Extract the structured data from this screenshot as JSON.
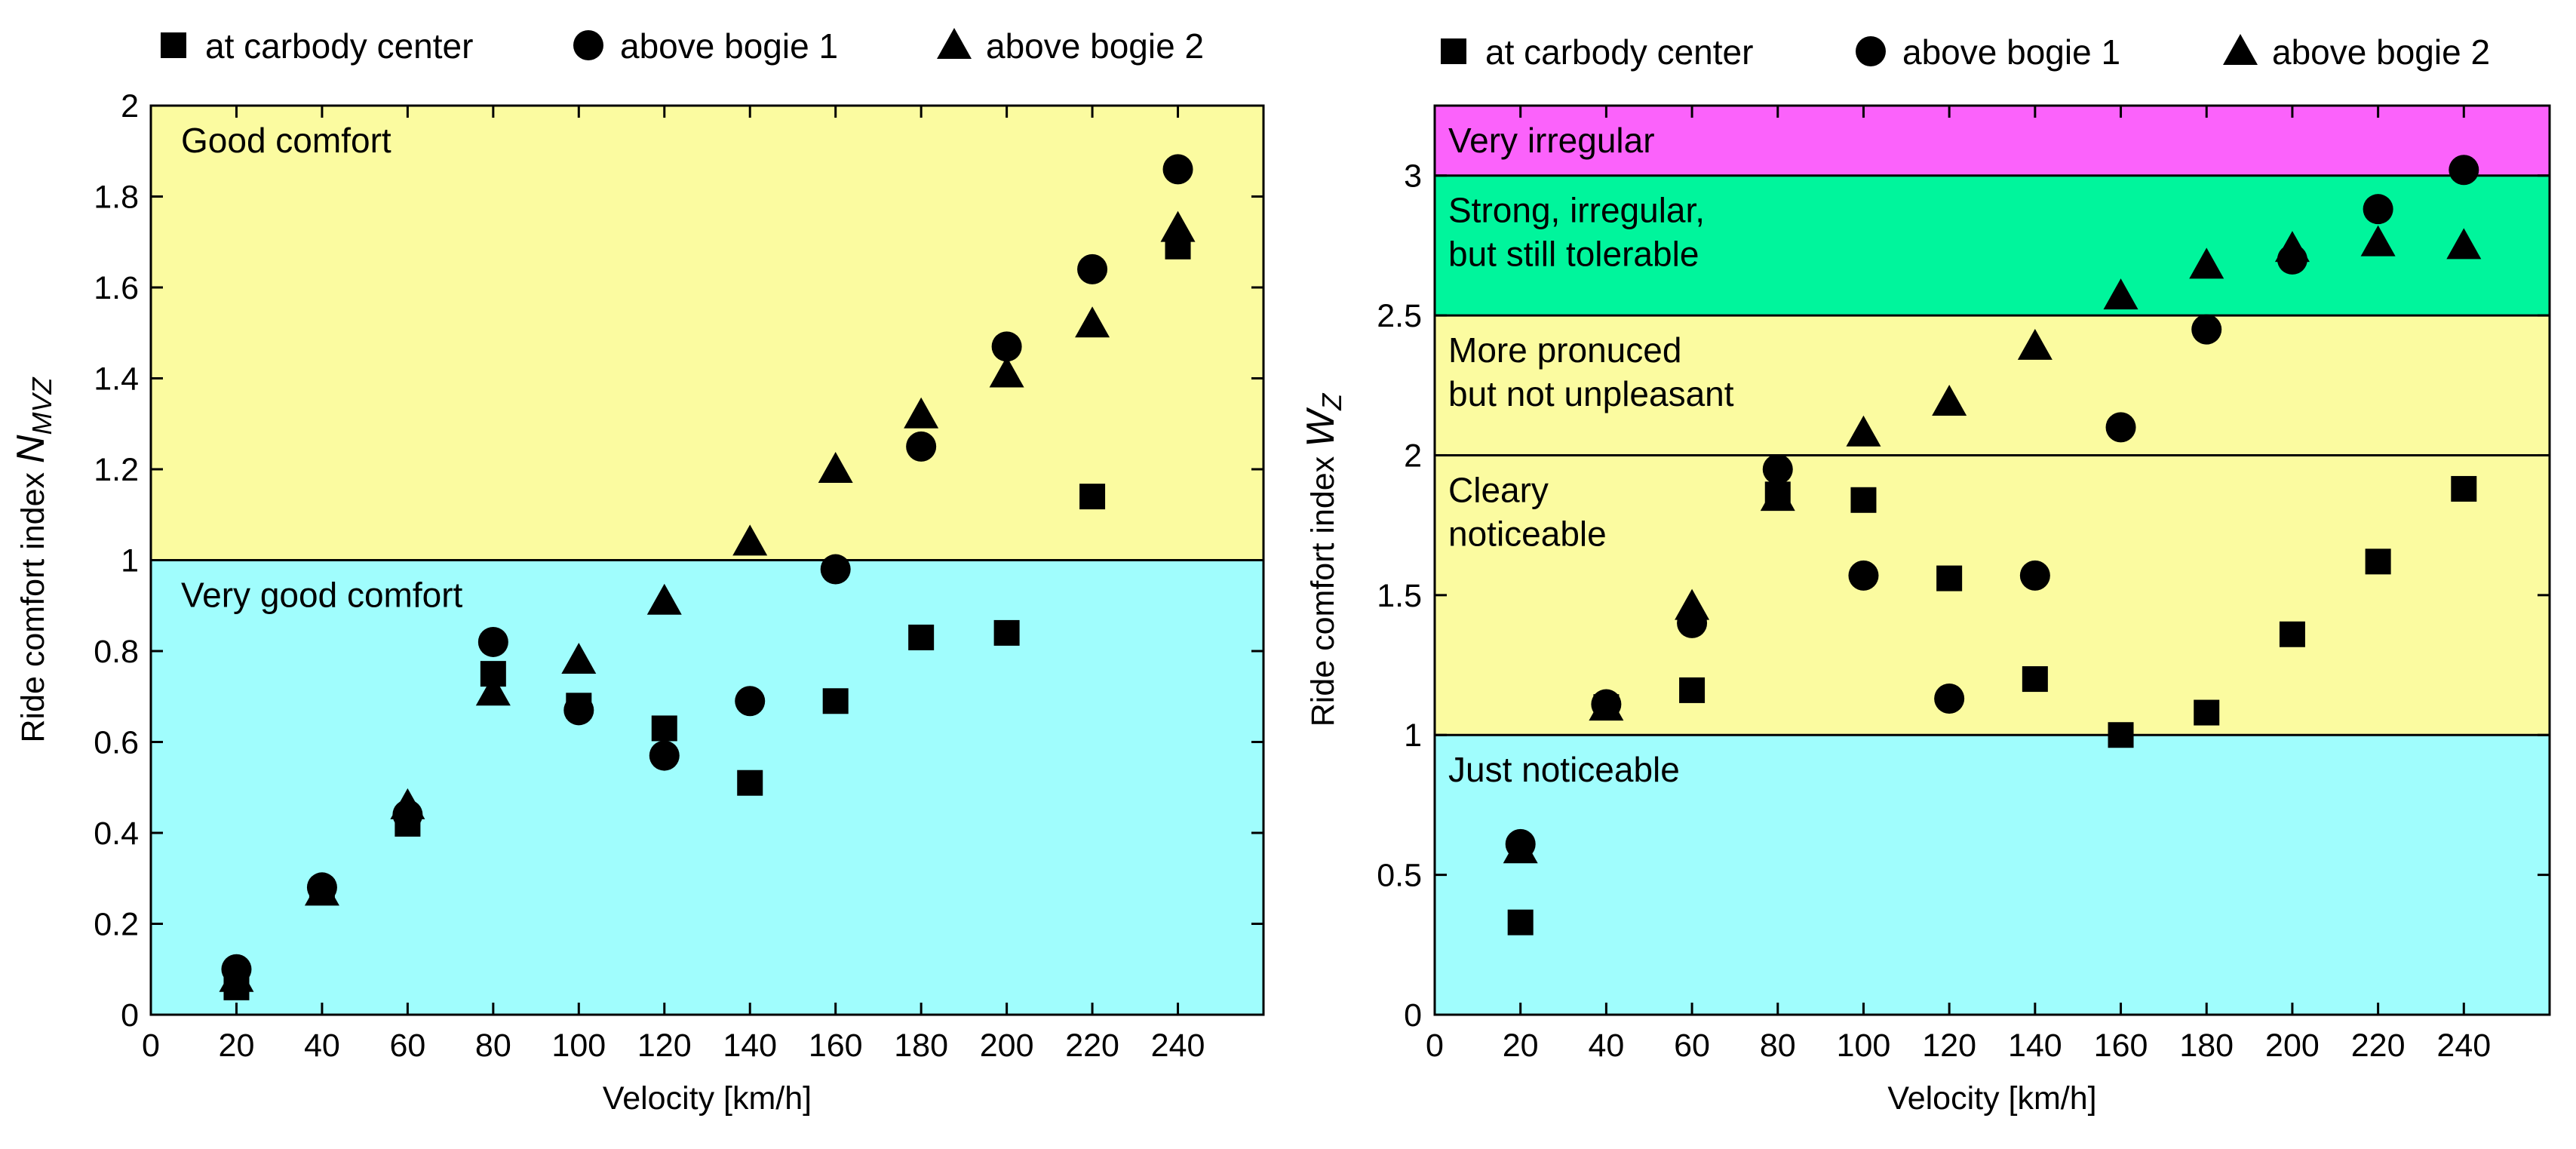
{
  "chart_data": [
    {
      "type": "scatter",
      "xlabel": "Velocity [km/h]",
      "ylabel": "Ride comfort index",
      "ylabel_symbol": "N",
      "ylabel_sub": "MVZ",
      "xlim": [
        0,
        260
      ],
      "ylim": [
        0,
        2
      ],
      "xticks": [
        0,
        20,
        40,
        60,
        80,
        100,
        120,
        140,
        160,
        180,
        200,
        220,
        240
      ],
      "yticks": [
        0,
        0.2,
        0.4,
        0.6,
        0.8,
        1,
        1.2,
        1.4,
        1.6,
        1.8,
        2
      ],
      "regions": [
        {
          "label": "Good comfort",
          "lines": [
            "Good comfort"
          ],
          "from": 1,
          "to": 2,
          "color": "#fbfba0"
        },
        {
          "label": "Very good comfort",
          "lines": [
            "Very good comfort"
          ],
          "from": 0,
          "to": 1,
          "color": "#a0fdfd"
        }
      ],
      "series": [
        {
          "name": "at carbody center",
          "marker": "square",
          "x": [
            20,
            40,
            60,
            80,
            100,
            120,
            140,
            160,
            180,
            200,
            220,
            240
          ],
          "y": [
            0.06,
            0.27,
            0.42,
            0.75,
            0.68,
            0.63,
            0.51,
            0.69,
            0.83,
            0.84,
            1.14,
            1.69
          ]
        },
        {
          "name": "above bogie 1",
          "marker": "circle",
          "x": [
            20,
            40,
            60,
            80,
            100,
            120,
            140,
            160,
            180,
            200,
            220,
            240
          ],
          "y": [
            0.1,
            0.28,
            0.44,
            0.82,
            0.67,
            0.57,
            0.69,
            0.98,
            1.25,
            1.47,
            1.64,
            1.86
          ]
        },
        {
          "name": "above bogie 2",
          "marker": "triangle",
          "x": [
            20,
            40,
            60,
            80,
            100,
            120,
            140,
            160,
            180,
            200,
            220,
            240
          ],
          "y": [
            0.08,
            0.27,
            0.46,
            0.71,
            0.78,
            0.91,
            1.04,
            1.2,
            1.32,
            1.41,
            1.52,
            1.73
          ]
        }
      ]
    },
    {
      "type": "scatter",
      "xlabel": "Velocity [km/h]",
      "ylabel": "Ride comfort index",
      "ylabel_symbol": "W",
      "ylabel_sub": "Z",
      "xlim": [
        0,
        260
      ],
      "ylim": [
        0,
        3.25
      ],
      "xticks": [
        0,
        20,
        40,
        60,
        80,
        100,
        120,
        140,
        160,
        180,
        200,
        220,
        240
      ],
      "yticks": [
        0,
        0.5,
        1,
        1.5,
        2,
        2.5,
        3
      ],
      "regions": [
        {
          "label": "Very irregular",
          "lines": [
            "Very irregular"
          ],
          "from": 3,
          "to": 3.25,
          "color": "#fb62fb"
        },
        {
          "label": "Strong, irregular, but still tolerable",
          "lines": [
            "Strong, irregular,",
            "but still tolerable"
          ],
          "from": 2.5,
          "to": 3,
          "color": "#00f59c"
        },
        {
          "label": "More pronuced but not unpleasant",
          "lines": [
            "More pronuced",
            "but not unpleasant"
          ],
          "from": 2,
          "to": 2.5,
          "color": "#fbfba0"
        },
        {
          "label": "Cleary noticeable",
          "lines": [
            "Cleary",
            "noticeable"
          ],
          "from": 1,
          "to": 2,
          "color": "#fbfba0"
        },
        {
          "label": "Just noticeable",
          "lines": [
            "Just noticeable"
          ],
          "from": 0,
          "to": 1,
          "color": "#a0fdfd"
        }
      ],
      "series": [
        {
          "name": "at carbody center",
          "marker": "square",
          "x": [
            20,
            40,
            60,
            80,
            100,
            120,
            140,
            160,
            180,
            200,
            220,
            240
          ],
          "y": [
            0.33,
            1.1,
            1.16,
            1.86,
            1.84,
            1.56,
            1.2,
            1.0,
            1.08,
            1.36,
            1.62,
            1.88
          ]
        },
        {
          "name": "above bogie 1",
          "marker": "circle",
          "x": [
            20,
            40,
            60,
            80,
            100,
            120,
            140,
            160,
            180,
            200,
            220,
            240
          ],
          "y": [
            0.61,
            1.11,
            1.4,
            1.95,
            1.57,
            1.13,
            1.57,
            2.1,
            2.45,
            2.7,
            2.88,
            3.02
          ]
        },
        {
          "name": "above bogie 2",
          "marker": "triangle",
          "x": [
            20,
            40,
            60,
            80,
            100,
            120,
            140,
            160,
            180,
            200,
            220,
            240
          ],
          "y": [
            0.59,
            1.1,
            1.46,
            1.85,
            2.08,
            2.19,
            2.39,
            2.57,
            2.68,
            2.74,
            2.76,
            2.75
          ]
        }
      ]
    }
  ]
}
